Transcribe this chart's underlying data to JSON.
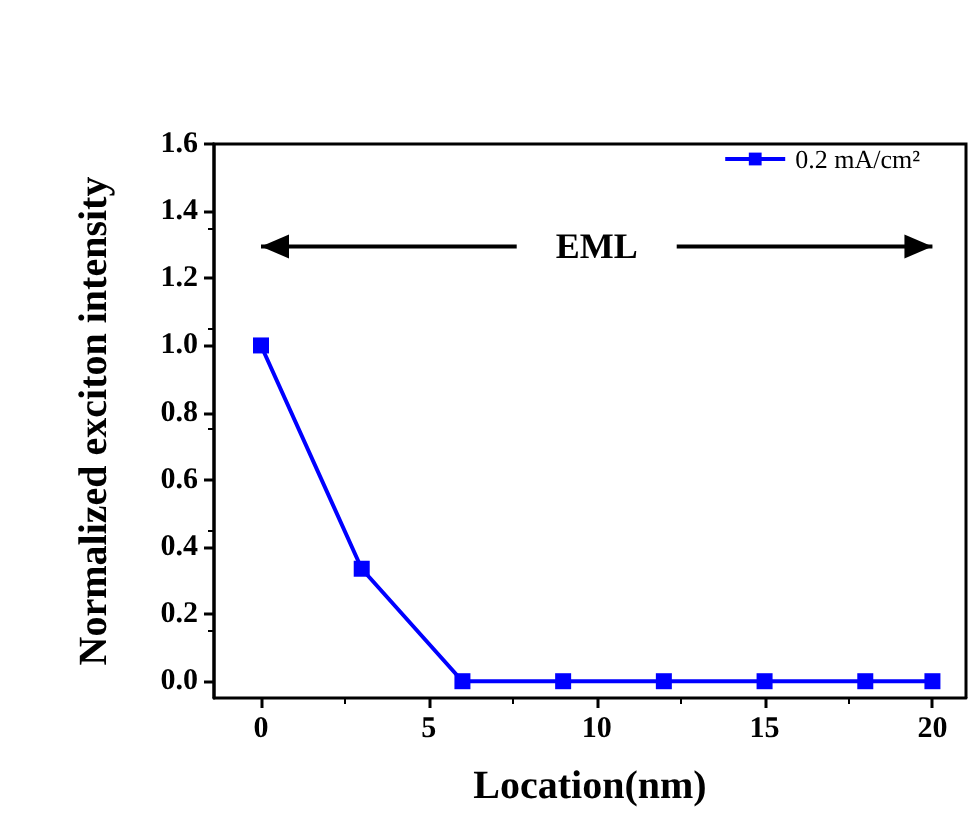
{
  "chart_data": {
    "type": "line",
    "xlabel": "Location(nm)",
    "ylabel": "Normalized exciton intensity",
    "x": [
      0,
      3,
      6,
      9,
      12,
      15,
      18,
      20
    ],
    "series": [
      {
        "name": "0.2 mA/cm²",
        "color": "#0000ff",
        "values": [
          1,
          0.335,
          0,
          0,
          0,
          0,
          0,
          0
        ]
      }
    ],
    "xlim": [
      -1.4,
      21
    ],
    "xticks": [
      0,
      5,
      10,
      15,
      20
    ],
    "ylim": [
      -0.05,
      1.6
    ],
    "yticks": [
      {
        "value": 0,
        "label": "0.0"
      },
      {
        "value": 0.2,
        "label": "0.2"
      },
      {
        "value": 0.4,
        "label": "0.4"
      },
      {
        "value": 0.6,
        "label": "0.6"
      },
      {
        "value": 0.8,
        "label": "0.8"
      },
      {
        "value": 1,
        "label": "1.0"
      },
      {
        "value": 1.2,
        "label": "1.2"
      },
      {
        "value": 1.4,
        "label": "1.4"
      },
      {
        "value": 1.6,
        "label": "1.6"
      }
    ],
    "annotations": [
      "EML"
    ],
    "legend": "top right",
    "marker": "square",
    "line_style": "solid",
    "grid": false
  }
}
